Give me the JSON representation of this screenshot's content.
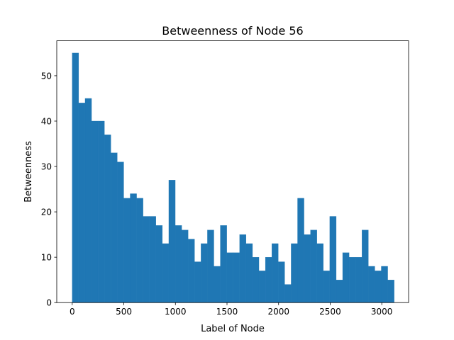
{
  "chart_data": {
    "type": "bar",
    "title": "Betweenness of Node 56",
    "xlabel": "Label of Node",
    "ylabel": "Betweenness",
    "xlim": [
      -150,
      3260
    ],
    "ylim": [
      0,
      57.7
    ],
    "bin_start": 0,
    "bin_width": 62.4,
    "values": [
      55,
      44,
      45,
      40,
      40,
      37,
      33,
      31,
      23,
      24,
      23,
      19,
      19,
      17,
      13,
      27,
      17,
      16,
      14,
      9,
      13,
      16,
      8,
      17,
      11,
      11,
      15,
      13,
      10,
      7,
      10,
      13,
      9,
      4,
      13,
      23,
      15,
      16,
      13,
      7,
      19,
      5,
      11,
      10,
      10,
      16,
      8,
      7,
      8,
      5
    ],
    "xticks": [
      0,
      500,
      1000,
      1500,
      2000,
      2500,
      3000
    ],
    "xtick_labels": [
      "0",
      "500",
      "1000",
      "1500",
      "2000",
      "2500",
      "3000"
    ],
    "yticks": [
      0,
      10,
      20,
      30,
      40,
      50
    ],
    "ytick_labels": [
      "0",
      "10",
      "20",
      "30",
      "40",
      "50"
    ],
    "grid": false,
    "colors": {
      "bar": "#1f77b4",
      "axis": "#000000"
    }
  }
}
